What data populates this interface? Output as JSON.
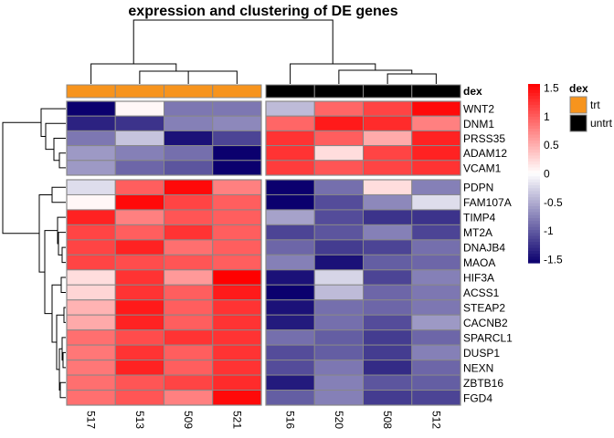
{
  "chart_data": {
    "type": "heatmap",
    "title": "expression and clustering of DE genes",
    "columns": [
      "517",
      "513",
      "509",
      "521",
      "516",
      "520",
      "508",
      "512"
    ],
    "column_groups": [
      "trt",
      "trt",
      "trt",
      "trt",
      "untrt",
      "untrt",
      "untrt",
      "untrt"
    ],
    "column_split_after": 4,
    "rows": [
      "WNT2",
      "DNM1",
      "PRSS35",
      "ADAM12",
      "VCAM1",
      "PDPN",
      "FAM107A",
      "TIMP4",
      "MT2A",
      "DNAJB4",
      "MAOA",
      "HIF3A",
      "ACSS1",
      "STEAP2",
      "CACNB2",
      "SPARCL1",
      "DUSP1",
      "NEXN",
      "ZBTB16",
      "FGD4"
    ],
    "row_split_after": 5,
    "values": [
      [
        -1.5,
        0.05,
        -0.8,
        -0.8,
        -0.4,
        0.9,
        1.1,
        1.45
      ],
      [
        -1.3,
        -1.2,
        -0.75,
        -0.7,
        0.9,
        1.35,
        1.25,
        0.75
      ],
      [
        -0.8,
        -0.35,
        -1.4,
        -1.1,
        1.2,
        0.95,
        0.5,
        1.3
      ],
      [
        -0.6,
        -0.75,
        -0.85,
        -1.5,
        1.2,
        0.2,
        1.1,
        1.3
      ],
      [
        -0.6,
        -0.9,
        -1.0,
        -1.5,
        1.15,
        1.0,
        1.1,
        1.2
      ],
      [
        -0.2,
        0.95,
        1.45,
        0.75,
        -1.5,
        -0.85,
        0.2,
        -0.75
      ],
      [
        0.05,
        1.45,
        1.1,
        0.95,
        -1.5,
        -1.05,
        -0.7,
        -0.2
      ],
      [
        1.3,
        0.75,
        1.0,
        0.95,
        -0.55,
        -1.05,
        -1.2,
        -1.2
      ],
      [
        1.1,
        0.95,
        1.2,
        0.95,
        -1.1,
        -1.0,
        -0.75,
        -1.1
      ],
      [
        1.1,
        1.3,
        0.85,
        0.95,
        -0.9,
        -1.15,
        -1.1,
        -0.85
      ],
      [
        1.1,
        1.05,
        1.0,
        0.95,
        -0.75,
        -1.4,
        -0.95,
        -0.9
      ],
      [
        0.2,
        1.2,
        0.6,
        1.5,
        -1.4,
        -0.25,
        -1.1,
        -0.75
      ],
      [
        0.25,
        1.2,
        0.95,
        1.35,
        -1.5,
        -0.4,
        -0.9,
        -0.8
      ],
      [
        0.45,
        1.35,
        0.95,
        1.2,
        -1.4,
        -0.85,
        -0.9,
        -0.8
      ],
      [
        0.5,
        1.3,
        0.95,
        1.2,
        -1.35,
        -0.85,
        -1.05,
        -0.6
      ],
      [
        0.85,
        1.05,
        1.2,
        1.2,
        -0.85,
        -0.95,
        -1.15,
        -0.9
      ],
      [
        0.8,
        1.2,
        0.95,
        1.2,
        -1.05,
        -0.95,
        -1.15,
        -0.75
      ],
      [
        0.8,
        1.3,
        0.95,
        1.2,
        -1.05,
        -0.8,
        -1.25,
        -0.9
      ],
      [
        0.85,
        1.0,
        1.1,
        1.25,
        -1.35,
        -0.75,
        -1.0,
        -0.95
      ],
      [
        0.85,
        1.0,
        0.75,
        1.45,
        -0.95,
        -0.75,
        -1.15,
        -1.1
      ]
    ],
    "color_scale": {
      "range": [
        -1.5,
        1.5
      ],
      "low": "#0b006e",
      "mid": "#ffffff",
      "high": "#ff0000",
      "ticks": [
        "1.5",
        "1",
        "0.5",
        "0",
        "-0.5",
        "-1",
        "-1.5"
      ],
      "tick_values": [
        1.5,
        1,
        0.5,
        0,
        -0.5,
        -1,
        -1.5
      ]
    },
    "annotation": {
      "name": "dex",
      "legend_title": "dex",
      "levels": [
        {
          "label": "trt",
          "color": "#f7941d"
        },
        {
          "label": "untrt",
          "color": "#000000"
        }
      ]
    },
    "row_dendrogram": "hierarchical clustering (left)",
    "column_dendrogram": "hierarchical clustering (top)"
  }
}
